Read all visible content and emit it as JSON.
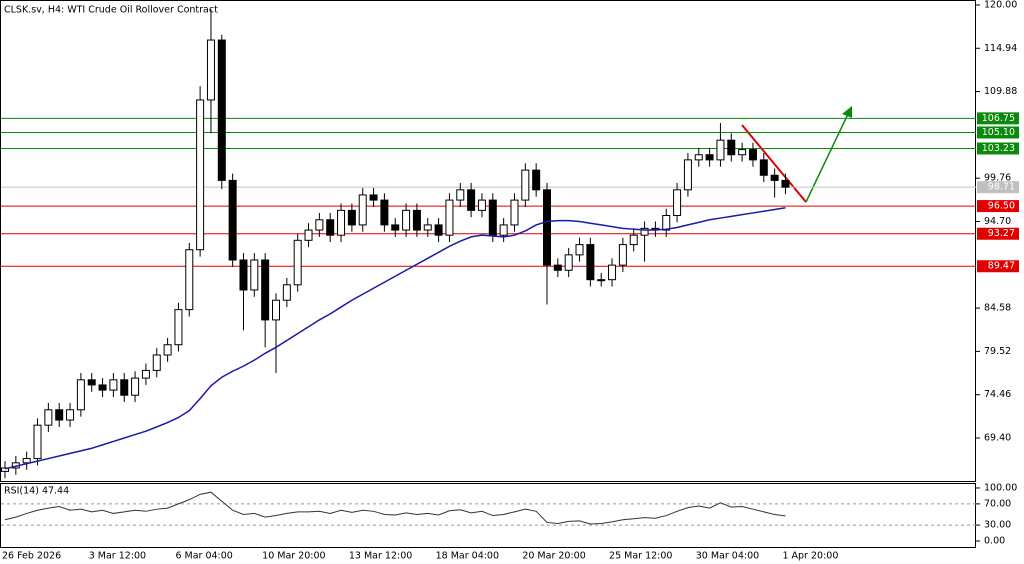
{
  "chart_data": [
    {
      "type": "candlestick",
      "title": "CLSK.sv, H4:  WTI Crude Oil Rollover Contract",
      "categories": [
        "26 Feb 2026",
        null,
        null,
        null,
        null,
        null,
        null,
        null,
        "3 Mar 12:00",
        null,
        null,
        null,
        null,
        null,
        null,
        null,
        "6 Mar 04:00",
        null,
        null,
        null,
        null,
        null,
        null,
        null,
        "10 Mar 20:00",
        null,
        null,
        null,
        null,
        null,
        null,
        null,
        "13 Mar 12:00",
        null,
        null,
        null,
        null,
        null,
        null,
        null,
        "18 Mar 04:00",
        null,
        null,
        null,
        null,
        null,
        null,
        null,
        "20 Mar 20:00",
        null,
        null,
        null,
        null,
        null,
        null,
        null,
        "25 Mar 12:00",
        null,
        null,
        null,
        null,
        null,
        null,
        null,
        "30 Mar 04:00",
        null,
        null,
        null,
        null,
        null,
        null,
        null,
        "1 Apr 20:00"
      ],
      "open": [
        65.5,
        65.9,
        66.5,
        67,
        70.9,
        72.7,
        71.5,
        72.7,
        76.2,
        75.6,
        75,
        76.2,
        74.4,
        76.4,
        77.3,
        79.1,
        80.3,
        84.4,
        91.4,
        108.9,
        115.9,
        99.5,
        90.2,
        86.7,
        90.2,
        83.2,
        85.5,
        87.3,
        92.5,
        93.7,
        94.9,
        93.1,
        96,
        94.3,
        97.8,
        97.2,
        94.3,
        93.7,
        96,
        93.7,
        94.3,
        93.1,
        97.2,
        98.4,
        96,
        97.2,
        93.1,
        94.3,
        97.2,
        100.7,
        98.4,
        89.6,
        89,
        90.8,
        92,
        87.9,
        87.9,
        89.6,
        92,
        93.1,
        93.9,
        93.7,
        95.4,
        98.4,
        101.9,
        102.5,
        101.9,
        104.2,
        102.5,
        103.1,
        101.9,
        100.1,
        99.5
      ],
      "high": [
        66.7,
        67.3,
        67.8,
        71.7,
        73.5,
        73.5,
        73.5,
        77,
        77,
        76.4,
        77,
        77,
        77.2,
        78.1,
        79.9,
        81.1,
        85.2,
        92.2,
        110.5,
        119.5,
        116.5,
        100.3,
        91,
        91,
        91,
        86.3,
        88.1,
        93.3,
        94.5,
        95.7,
        95.7,
        96.8,
        96.8,
        98.6,
        98.6,
        98,
        95.1,
        96.8,
        96.8,
        95.1,
        95.1,
        98,
        99.2,
        99.2,
        98,
        98,
        95.1,
        98,
        101.5,
        101.5,
        99.2,
        90.4,
        91.6,
        92.8,
        92.8,
        88.7,
        90.4,
        92.8,
        93.9,
        94.7,
        94.7,
        96.2,
        99.2,
        102.7,
        103.3,
        103.3,
        106.2,
        105,
        103.9,
        103.9,
        102.7,
        100.9,
        100.3
      ],
      "low": [
        64.7,
        65.1,
        65.7,
        66.2,
        70.1,
        70.7,
        70.7,
        71.9,
        74.8,
        74.2,
        74.2,
        73.6,
        73.6,
        75.6,
        76.5,
        78.3,
        79.5,
        83.6,
        90.6,
        105,
        98.5,
        89.4,
        82,
        85.9,
        80,
        77,
        84.7,
        86.5,
        91.7,
        92.9,
        92.3,
        92.3,
        93.5,
        93.5,
        96.4,
        93.5,
        92.9,
        92.9,
        92.9,
        92.9,
        92.3,
        92.3,
        96.4,
        95.2,
        95.2,
        92.3,
        92.3,
        93.5,
        96.4,
        97.6,
        85,
        88.2,
        88.2,
        90,
        87.1,
        87.1,
        87.1,
        88.8,
        91.2,
        90,
        92.9,
        92.9,
        94.6,
        97.6,
        101.1,
        101.1,
        101.1,
        101.7,
        101.7,
        101.1,
        99.3,
        97.5,
        97.9
      ],
      "close": [
        65.9,
        66.5,
        67,
        70.9,
        72.7,
        71.5,
        72.7,
        76.2,
        75.6,
        75,
        76.2,
        74.4,
        76.4,
        77.3,
        79.1,
        80.3,
        84.4,
        91.4,
        108.9,
        115.9,
        99.5,
        90.2,
        86.7,
        90.2,
        83.2,
        85.5,
        87.3,
        92.5,
        93.7,
        94.9,
        93.1,
        96,
        94.3,
        97.8,
        97.2,
        94.3,
        93.7,
        96,
        93.7,
        94.3,
        93.1,
        97.2,
        98.4,
        96,
        97.2,
        93.1,
        94.3,
        97.2,
        100.7,
        98.4,
        89.6,
        89,
        90.8,
        92,
        87.9,
        87.9,
        89.6,
        92,
        93.1,
        93.9,
        93.7,
        95.4,
        98.4,
        101.9,
        102.5,
        101.9,
        104.2,
        102.5,
        103.1,
        101.9,
        100.1,
        99.5,
        98.71
      ],
      "up_color": "#ffffff",
      "down_color": "#000000",
      "moving_average": {
        "color": "#1a1aa8",
        "values": [
          65.8,
          66.1,
          66.4,
          66.7,
          67,
          67.3,
          67.6,
          67.9,
          68.2,
          68.6,
          69,
          69.4,
          69.8,
          70.2,
          70.7,
          71.2,
          71.8,
          72.6,
          74,
          75.5,
          76.5,
          77.2,
          77.8,
          78.5,
          79.3,
          80,
          80.8,
          81.6,
          82.4,
          83.2,
          83.9,
          84.7,
          85.5,
          86.2,
          86.9,
          87.6,
          88.3,
          89,
          89.7,
          90.4,
          91.1,
          91.8,
          92.4,
          92.9,
          93.1,
          93,
          92.9,
          93.1,
          93.6,
          94.3,
          94.7,
          94.8,
          94.8,
          94.7,
          94.5,
          94.3,
          94.1,
          93.9,
          93.8,
          93.7,
          93.7,
          93.8,
          94,
          94.3,
          94.6,
          94.9,
          95.1,
          95.3,
          95.5,
          95.7,
          95.9,
          96.1,
          96.3
        ]
      },
      "levels": [
        {
          "value": 106.75,
          "color": "#0a8a0a"
        },
        {
          "value": {
            "value": 105.1,
            "label": "105.10"
          },
          "color": "#0a8a0a"
        },
        {
          "value": 103.23,
          "color": "#0a8a0a"
        },
        {
          "value": 98.71,
          "color": "#c0c0c0"
        },
        {
          "value": {
            "value": 96.5,
            "label": "96.50"
          },
          "color": "#e00000"
        },
        {
          "value": 93.27,
          "color": "#e00000"
        },
        {
          "value": 89.47,
          "color": "#e00000"
        }
      ],
      "ylim": [
        64.26,
        120.58
      ],
      "yticks": [
        {
          "value": 120,
          "label": "120.00"
        },
        114.94,
        109.88,
        99.76,
        {
          "value": 94.7,
          "label": "94.70"
        },
        84.58,
        79.52,
        74.46,
        {
          "value": 69.4,
          "label": "69.40"
        }
      ]
    },
    {
      "type": "line",
      "title": "RSI(14) 47.44",
      "color": "#333333",
      "values": [
        40,
        45,
        52,
        58,
        62,
        65,
        58,
        60,
        55,
        58,
        52,
        55,
        58,
        56,
        60,
        62,
        70,
        78,
        88,
        92,
        75,
        58,
        50,
        52,
        45,
        48,
        52,
        55,
        55,
        56,
        52,
        58,
        54,
        58,
        56,
        50,
        49,
        53,
        50,
        52,
        49,
        57,
        59,
        53,
        56,
        48,
        50,
        55,
        60,
        56,
        35,
        33,
        37,
        38,
        32,
        33,
        36,
        40,
        42,
        44,
        43,
        48,
        56,
        63,
        66,
        62,
        72,
        64,
        65,
        60,
        55,
        50,
        47.44
      ],
      "levels": [
        {
          "value": 70,
          "label": "70.00"
        },
        {
          "value": 30,
          "label": "30.00"
        }
      ],
      "ylim": [
        -13.2,
        107.5
      ],
      "yticks": [
        {
          "value": 100,
          "label": "100.00"
        },
        {
          "value": 70,
          "label": "70.00"
        },
        {
          "value": 30,
          "label": "30.00"
        },
        {
          "value": 0,
          "label": "0.00"
        }
      ]
    }
  ]
}
